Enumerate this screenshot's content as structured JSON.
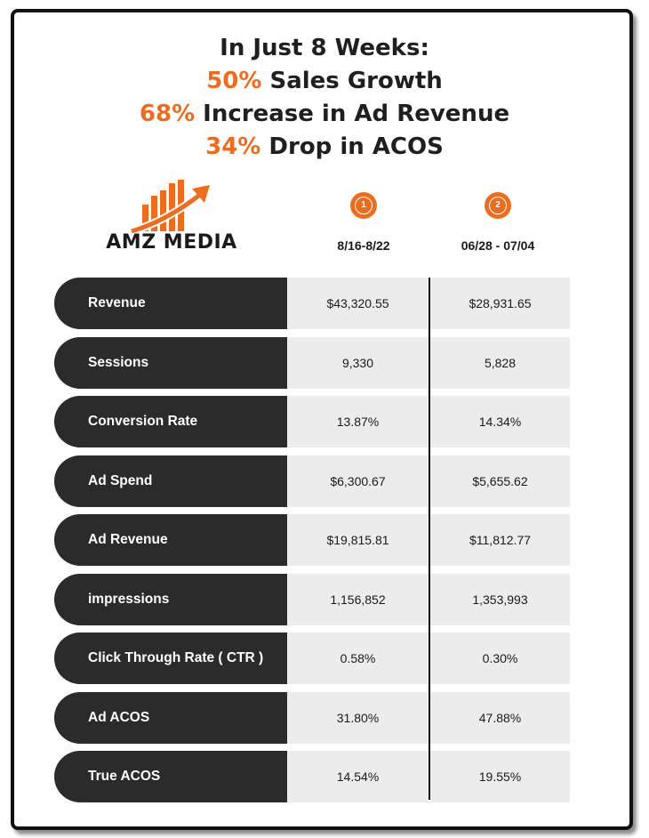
{
  "headline": {
    "line1": "In Just 8 Weeks:",
    "line2_accent": "50%",
    "line2_text": " Sales Growth",
    "line3_accent": "68%",
    "line3_text": " Increase in Ad Revenue",
    "line4_accent": "34%",
    "line4_text": " Drop in ACOS"
  },
  "logo": {
    "text": "AMZ MEDIA"
  },
  "columns": [
    {
      "badge": "1",
      "date": "8/16-8/22"
    },
    {
      "badge": "2",
      "date": "06/28 - 07/04"
    }
  ],
  "rows": [
    {
      "label": "Revenue",
      "v1": "$43,320.55",
      "v2": "$28,931.65"
    },
    {
      "label": "Sessions",
      "v1": "9,330",
      "v2": "5,828"
    },
    {
      "label": "Conversion Rate",
      "v1": "13.87%",
      "v2": "14.34%"
    },
    {
      "label": "Ad Spend",
      "v1": "$6,300.67",
      "v2": "$5,655.62"
    },
    {
      "label": "Ad Revenue",
      "v1": "$19,815.81",
      "v2": "$11,812.77"
    },
    {
      "label": "impressions",
      "v1": "1,156,852",
      "v2": "1,353,993"
    },
    {
      "label": "Click Through Rate ( CTR )",
      "v1": "0.58%",
      "v2": "0.30%"
    },
    {
      "label": "Ad ACOS",
      "v1": "31.80%",
      "v2": "47.88%"
    },
    {
      "label": "True ACOS",
      "v1": "14.54%",
      "v2": "19.55%"
    }
  ],
  "colors": {
    "accent": "#ec6d1f",
    "pill": "#2b2b2b",
    "cell": "#ececec"
  }
}
